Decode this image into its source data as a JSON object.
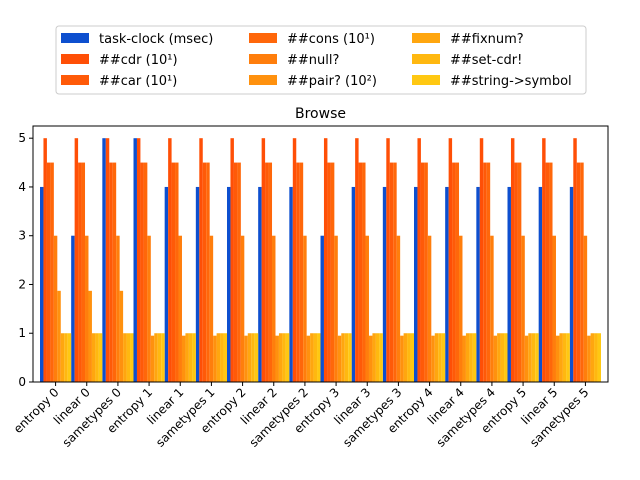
{
  "chart_data": {
    "type": "bar",
    "title": "Browse",
    "xlabel": "",
    "ylabel": "",
    "ylim": [
      0,
      5.25
    ],
    "yticks": [
      0,
      1,
      2,
      3,
      4,
      5
    ],
    "grid": false,
    "legend_position": "top",
    "categories": [
      "entropy 0",
      "linear 0",
      "sametypes 0",
      "entropy 1",
      "linear 1",
      "sametypes 1",
      "entropy 2",
      "linear 2",
      "sametypes 2",
      "entropy 3",
      "linear 3",
      "sametypes 3",
      "entropy 4",
      "linear 4",
      "sametypes 4",
      "entropy 5",
      "linear 5",
      "sametypes 5"
    ],
    "series": [
      {
        "name": "task-clock (msec)",
        "color": "#0d4fcf",
        "values": [
          4,
          3,
          5,
          5,
          4,
          4,
          4,
          4,
          4,
          3,
          4,
          4,
          4,
          4,
          4,
          4,
          4,
          4
        ]
      },
      {
        "name": "##cdr (10¹)",
        "color": "#ff4f06",
        "values": [
          5,
          5,
          5,
          5,
          5,
          5,
          5,
          5,
          5,
          5,
          5,
          5,
          5,
          5,
          5,
          5,
          5,
          5
        ]
      },
      {
        "name": "##car (10¹)",
        "color": "#ff5a08",
        "values": [
          4.5,
          4.5,
          4.5,
          4.5,
          4.5,
          4.5,
          4.5,
          4.5,
          4.5,
          4.5,
          4.5,
          4.5,
          4.5,
          4.5,
          4.5,
          4.5,
          4.5,
          4.5
        ]
      },
      {
        "name": "##cons (10¹)",
        "color": "#ff670a",
        "values": [
          4.5,
          4.5,
          4.5,
          4.5,
          4.5,
          4.5,
          4.5,
          4.5,
          4.5,
          4.5,
          4.5,
          4.5,
          4.5,
          4.5,
          4.5,
          4.5,
          4.5,
          4.5
        ]
      },
      {
        "name": "##null?",
        "color": "#ff7e0c",
        "values": [
          3,
          3,
          3,
          3,
          3,
          3,
          3,
          3,
          3,
          3,
          3,
          3,
          3,
          3,
          3,
          3,
          3,
          3
        ]
      },
      {
        "name": "##pair? (10²)",
        "color": "#ff910e",
        "values": [
          1.87,
          1.87,
          1.87,
          0.95,
          0.95,
          0.95,
          0.95,
          0.95,
          0.95,
          0.95,
          0.95,
          0.95,
          0.95,
          0.95,
          0.95,
          0.95,
          0.95,
          0.95
        ]
      },
      {
        "name": "##fixnum?",
        "color": "#ffa60f",
        "values": [
          1,
          1,
          1,
          1,
          1,
          1,
          1,
          1,
          1,
          1,
          1,
          1,
          1,
          1,
          1,
          1,
          1,
          1
        ]
      },
      {
        "name": "##set-cdr!",
        "color": "#ffb810",
        "values": [
          1,
          1,
          1,
          1,
          1,
          1,
          1,
          1,
          1,
          1,
          1,
          1,
          1,
          1,
          1,
          1,
          1,
          1
        ]
      },
      {
        "name": "##string->symbol",
        "color": "#ffc812",
        "values": [
          1,
          1,
          1,
          1,
          1,
          1,
          1,
          1,
          1,
          1,
          1,
          1,
          1,
          1,
          1,
          1,
          1,
          1
        ]
      }
    ]
  }
}
